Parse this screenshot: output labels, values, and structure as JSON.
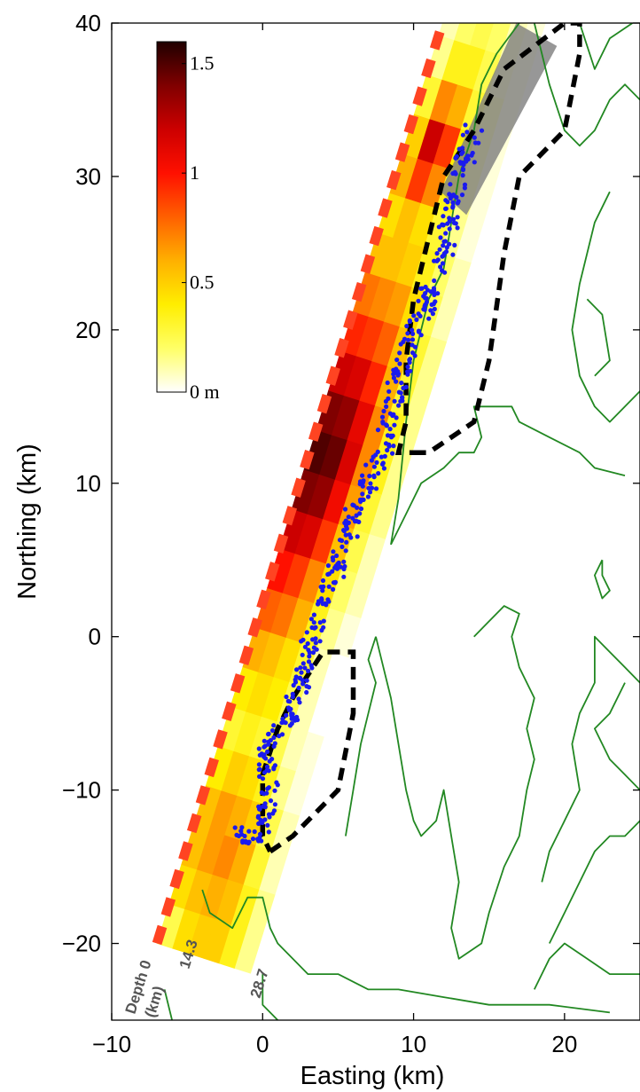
{
  "chart_data": {
    "type": "heatmap",
    "xlabel": "Easting (km)",
    "ylabel": "Northing (km)",
    "xlim": [
      -10,
      25
    ],
    "ylim": [
      -25,
      40
    ],
    "xticks": [
      -10,
      0,
      10,
      20
    ],
    "yticks": [
      -20,
      -10,
      0,
      10,
      20,
      30,
      40
    ],
    "xtick_labels": [
      "−10",
      "0",
      "10",
      "20"
    ],
    "ytick_labels": [
      "−20",
      "−10",
      "0",
      "10",
      "20",
      "30",
      "40"
    ],
    "colorbar": {
      "unit_label": "m",
      "ticks": [
        0,
        0.5,
        1,
        1.5
      ],
      "tick_labels": [
        "0 m",
        "0.5",
        "1",
        "1.5"
      ],
      "range": [
        0,
        1.6
      ],
      "colormap": [
        "#ffffff",
        "#ffff66",
        "#ffee00",
        "#ffb000",
        "#ff6000",
        "#ff1000",
        "#cc0000",
        "#800000",
        "#200000"
      ]
    },
    "depth_labels": [
      "Depth 0 (km)",
      "14.3",
      "28.7"
    ],
    "fault_trace_color": "#ff4422",
    "slip_patches": {
      "strike_deg": 17.5,
      "origin": [
        -7,
        -20
      ],
      "dip_width_km": [
        -6.2,
        1.95
      ],
      "along_strike_km": 2.7,
      "rows_dip": 6,
      "slip_m": [
        [
          0.25,
          0.45,
          0.5,
          0.5,
          0.35,
          0.15
        ],
        [
          0.45,
          0.55,
          0.6,
          0.55,
          0.35,
          0.15
        ],
        [
          0.55,
          0.65,
          0.7,
          0.6,
          0.3,
          0.1
        ],
        [
          0.55,
          0.65,
          0.6,
          0.5,
          0.25,
          0.1
        ],
        [
          0.4,
          0.5,
          0.45,
          0.35,
          0.15,
          0.05
        ],
        [
          0.3,
          0.35,
          0.3,
          0.25,
          0.1,
          0.05
        ],
        [
          0.4,
          0.45,
          0.4,
          0.25,
          0.1,
          0.0
        ],
        [
          0.6,
          0.55,
          0.45,
          0.3,
          0.1,
          0.0
        ],
        [
          0.8,
          0.75,
          0.6,
          0.35,
          0.15,
          0.05
        ],
        [
          1.0,
          0.9,
          0.7,
          0.45,
          0.2,
          0.1
        ],
        [
          1.2,
          1.15,
          0.9,
          0.55,
          0.25,
          0.1
        ],
        [
          1.4,
          1.35,
          1.05,
          0.65,
          0.3,
          0.15
        ],
        [
          1.5,
          1.45,
          1.15,
          0.7,
          0.35,
          0.15
        ],
        [
          1.4,
          1.35,
          1.1,
          0.7,
          0.35,
          0.15
        ],
        [
          1.2,
          1.15,
          0.95,
          0.6,
          0.3,
          0.15
        ],
        [
          0.95,
          0.9,
          0.8,
          0.55,
          0.3,
          0.15
        ],
        [
          0.75,
          0.7,
          0.65,
          0.45,
          0.25,
          0.1
        ],
        [
          0.55,
          0.55,
          0.5,
          0.35,
          0.2,
          0.1
        ],
        [
          0.45,
          0.55,
          0.45,
          0.3,
          0.15,
          0.05
        ],
        [
          0.6,
          0.9,
          0.7,
          0.35,
          0.15,
          0.05
        ],
        [
          0.5,
          1.2,
          0.9,
          0.4,
          0.15,
          0.05
        ],
        [
          0.3,
          0.7,
          0.6,
          0.3,
          0.15,
          0.05
        ],
        [
          0.15,
          0.35,
          0.35,
          0.25,
          0.1,
          0.05
        ],
        [
          0.1,
          0.2,
          0.25,
          0.2,
          0.1,
          0.05
        ],
        [
          0.05,
          0.1,
          0.15,
          0.15,
          0.1,
          0.05
        ]
      ]
    },
    "aftershocks_color": "#1a1aee",
    "aftershocks_segments": [
      [
        [
          -2,
          -13
        ],
        [
          0,
          -13
        ],
        [
          0.5,
          -10
        ],
        [
          0,
          -7.5
        ],
        [
          2,
          -5
        ],
        [
          3,
          -1
        ],
        [
          4,
          2
        ],
        [
          5,
          5
        ],
        [
          6,
          8
        ],
        [
          7.5,
          11
        ],
        [
          8.5,
          14
        ],
        [
          9,
          17
        ],
        [
          10,
          20
        ],
        [
          11,
          22
        ],
        [
          12,
          25
        ],
        [
          13,
          30
        ],
        [
          14,
          33
        ]
      ]
    ],
    "rupture_outline": [
      [
        0.5,
        -14
      ],
      [
        2,
        -13
      ],
      [
        5,
        -10
      ],
      [
        6,
        -5
      ],
      [
        6,
        -1
      ],
      [
        4,
        -1
      ],
      [
        2,
        -4
      ],
      [
        1,
        -6
      ],
      [
        0,
        -9
      ],
      [
        0,
        -13
      ],
      [
        0.5,
        -14
      ]
    ],
    "rupture_outline_2": [
      [
        10,
        12
      ],
      [
        11,
        12
      ],
      [
        14,
        14
      ],
      [
        15,
        18
      ],
      [
        16,
        25
      ],
      [
        17,
        30
      ],
      [
        20,
        33
      ],
      [
        21,
        38
      ],
      [
        21,
        40
      ],
      [
        20,
        40
      ],
      [
        16,
        37
      ],
      [
        14,
        33
      ],
      [
        12,
        30
      ],
      [
        11,
        26
      ],
      [
        10,
        22
      ],
      [
        9.5,
        18
      ],
      [
        9.5,
        14
      ],
      [
        9,
        12
      ],
      [
        10,
        12
      ]
    ],
    "shaded_box": [
      [
        13.5,
        27.5
      ],
      [
        19.5,
        38.5
      ],
      [
        16.8,
        40
      ],
      [
        11.8,
        29
      ]
    ],
    "coastline_color": "#228822",
    "coastlines": [
      [
        [
          -4,
          -16.5
        ],
        [
          -3.5,
          -18
        ],
        [
          -2,
          -19
        ],
        [
          -1,
          -17
        ],
        [
          0,
          -17
        ],
        [
          0.5,
          -19
        ],
        [
          1,
          -20
        ],
        [
          2,
          -21
        ],
        [
          3,
          -22
        ],
        [
          5,
          -22
        ],
        [
          7,
          -23
        ],
        [
          9,
          -23
        ],
        [
          12,
          -23.5
        ],
        [
          15,
          -24
        ],
        [
          19,
          -24
        ],
        [
          23,
          -24.5
        ]
      ],
      [
        [
          0,
          -22
        ],
        [
          0,
          -24
        ],
        [
          1,
          -25
        ]
      ],
      [
        [
          -6,
          -25
        ],
        [
          -6.5,
          -23
        ]
      ],
      [
        [
          8.5,
          6
        ],
        [
          9.5,
          8
        ],
        [
          10.5,
          10
        ],
        [
          12,
          11
        ],
        [
          13,
          12
        ],
        [
          14,
          12
        ],
        [
          14.5,
          13
        ],
        [
          14,
          15
        ],
        [
          15,
          15
        ],
        [
          16.5,
          15
        ],
        [
          17,
          14
        ],
        [
          19,
          13
        ],
        [
          21,
          12
        ],
        [
          22,
          11
        ],
        [
          24,
          10.5
        ]
      ],
      [
        [
          8.5,
          6
        ],
        [
          9,
          9
        ],
        [
          9.5,
          14
        ],
        [
          10,
          18
        ],
        [
          10.5,
          20
        ],
        [
          11,
          22
        ],
        [
          12,
          24
        ],
        [
          12.5,
          27
        ],
        [
          13,
          30
        ],
        [
          14,
          33
        ],
        [
          14.5,
          36
        ],
        [
          15.5,
          38
        ],
        [
          17,
          40
        ]
      ],
      [
        [
          18,
          40
        ],
        [
          19,
          36
        ],
        [
          20,
          33
        ],
        [
          21,
          32
        ],
        [
          22,
          33
        ],
        [
          23,
          35
        ],
        [
          24,
          36
        ],
        [
          25,
          35
        ]
      ],
      [
        [
          21,
          40
        ],
        [
          22,
          37
        ],
        [
          23,
          39
        ],
        [
          24.5,
          40
        ]
      ],
      [
        [
          23,
          29
        ],
        [
          22,
          27
        ],
        [
          21,
          23
        ],
        [
          20.5,
          20
        ],
        [
          21,
          17
        ],
        [
          22,
          15
        ],
        [
          23,
          14
        ],
        [
          24,
          15
        ],
        [
          25,
          16
        ]
      ],
      [
        [
          21.5,
          22
        ],
        [
          22.5,
          21
        ],
        [
          23,
          18
        ],
        [
          22,
          17
        ]
      ],
      [
        [
          22.5,
          5
        ],
        [
          22.5,
          4
        ],
        [
          23,
          3
        ],
        [
          22.5,
          2.5
        ],
        [
          22,
          4
        ],
        [
          22.5,
          5
        ]
      ],
      [
        [
          7.5,
          0
        ],
        [
          8,
          -2
        ],
        [
          8.5,
          -4
        ],
        [
          9,
          -7
        ],
        [
          9.5,
          -10
        ],
        [
          10,
          -12
        ],
        [
          10.5,
          -13
        ],
        [
          11.5,
          -12
        ],
        [
          12,
          -10
        ],
        [
          12.5,
          -13
        ],
        [
          13,
          -16
        ],
        [
          12.5,
          -19
        ],
        [
          13,
          -21
        ],
        [
          14.5,
          -20
        ],
        [
          15,
          -18
        ],
        [
          16,
          -15
        ],
        [
          17,
          -13
        ],
        [
          17.5,
          -10
        ],
        [
          18,
          -8
        ],
        [
          17.5,
          -6
        ],
        [
          18,
          -4
        ],
        [
          17,
          -2
        ],
        [
          16.5,
          0
        ],
        [
          17,
          1.5
        ],
        [
          16,
          2
        ],
        [
          15,
          1
        ],
        [
          14,
          0
        ]
      ],
      [
        [
          7.5,
          0
        ],
        [
          7,
          -1.5
        ],
        [
          7.5,
          -3
        ],
        [
          7,
          -5
        ],
        [
          6.5,
          -7
        ],
        [
          6,
          -10
        ],
        [
          5.5,
          -13
        ]
      ],
      [
        [
          18.5,
          -16
        ],
        [
          19,
          -14
        ],
        [
          20,
          -12
        ],
        [
          21,
          -10
        ],
        [
          20.5,
          -7
        ],
        [
          21,
          -5
        ],
        [
          22,
          -3
        ],
        [
          22,
          0
        ],
        [
          23,
          -1
        ],
        [
          24,
          -2
        ],
        [
          25,
          -3
        ]
      ],
      [
        [
          19,
          -20
        ],
        [
          20,
          -18
        ],
        [
          21,
          -16
        ],
        [
          22,
          -14
        ],
        [
          23,
          -13
        ],
        [
          24,
          -13
        ],
        [
          25,
          -12
        ]
      ],
      [
        [
          18,
          -23
        ],
        [
          19,
          -21
        ],
        [
          20,
          -20
        ],
        [
          21.5,
          -21
        ],
        [
          23,
          -22
        ],
        [
          25,
          -22
        ]
      ],
      [
        [
          24,
          -3
        ],
        [
          23,
          -5
        ],
        [
          22,
          -6
        ],
        [
          23,
          -8
        ],
        [
          24,
          -9
        ],
        [
          25,
          -10
        ]
      ]
    ]
  }
}
